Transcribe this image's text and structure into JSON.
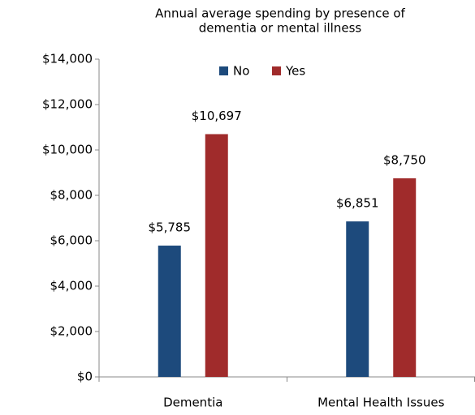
{
  "chart_data": {
    "type": "bar",
    "title": [
      "Annual average spending by presence of",
      "dementia or mental illness"
    ],
    "categories": [
      "Dementia",
      "Mental Health Issues"
    ],
    "series": [
      {
        "name": "No",
        "color": "#1d4a7c",
        "values": [
          5785,
          6851
        ],
        "value_labels": [
          "$5,785",
          "$6,851"
        ]
      },
      {
        "name": "Yes",
        "color": "#a02b2b",
        "values": [
          10697,
          8750
        ],
        "value_labels": [
          "$10,697",
          "$8,750"
        ]
      }
    ],
    "ylim": [
      0,
      14000
    ],
    "yticks": [
      {
        "value": 0,
        "label": "$0"
      },
      {
        "value": 2000,
        "label": "$2,000"
      },
      {
        "value": 4000,
        "label": "$4,000"
      },
      {
        "value": 6000,
        "label": "$6,000"
      },
      {
        "value": 8000,
        "label": "$8,000"
      },
      {
        "value": 10000,
        "label": "$10,000"
      },
      {
        "value": 12000,
        "label": "$12,000"
      },
      {
        "value": 14000,
        "label": "$14,000"
      }
    ],
    "legend": "top"
  }
}
